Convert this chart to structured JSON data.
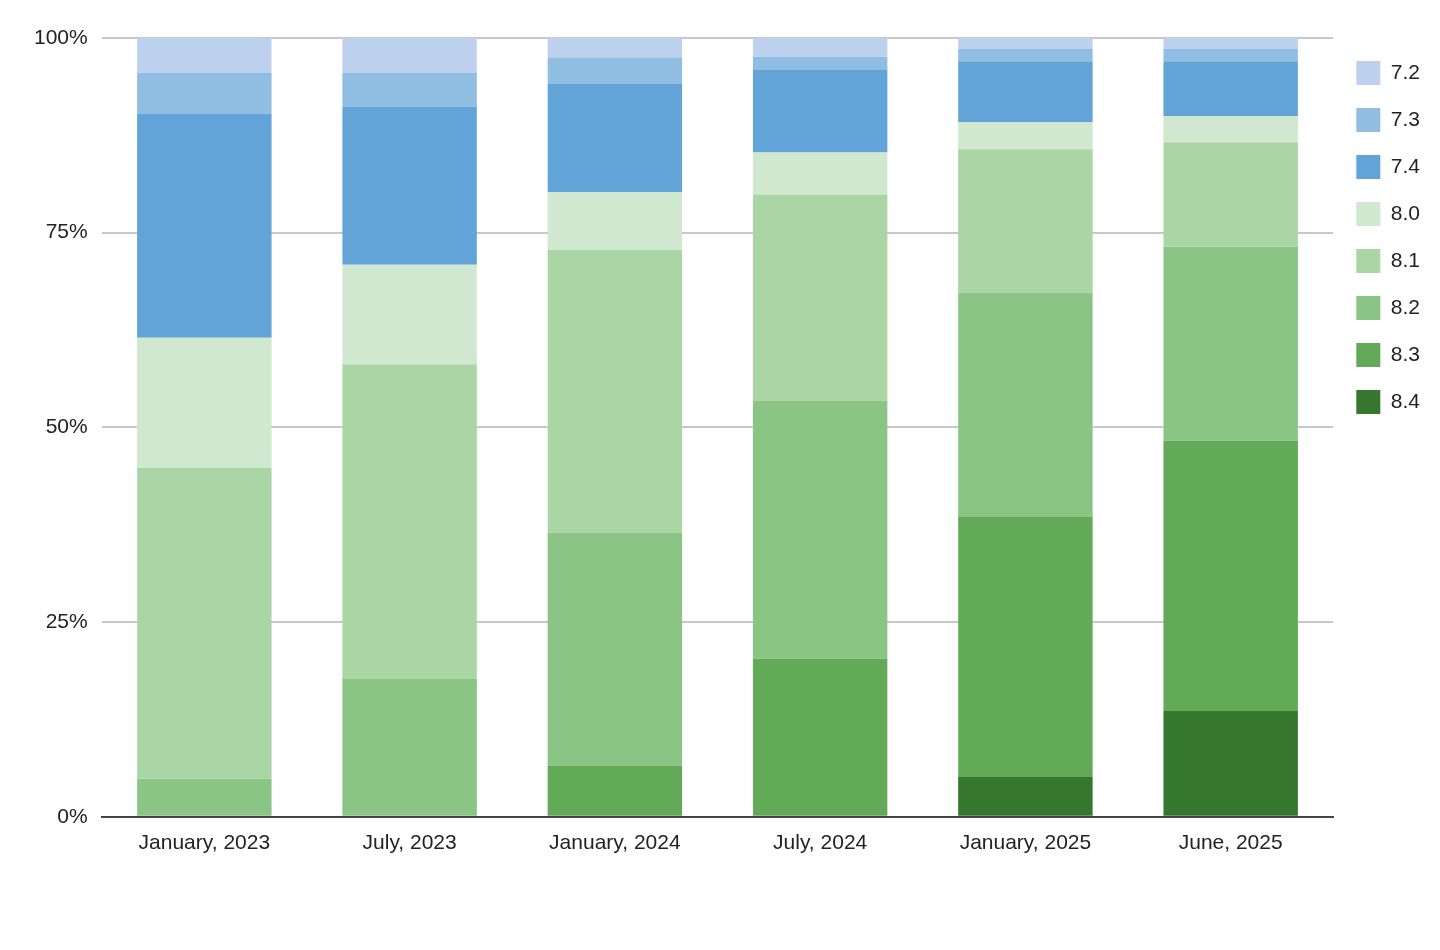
{
  "chart_data": {
    "type": "bar",
    "stacked": true,
    "categories": [
      "January, 2023",
      "July, 2023",
      "January, 2024",
      "July, 2024",
      "January, 2025",
      "June, 2025"
    ],
    "series": [
      {
        "name": "8.4",
        "color": "#34772d",
        "values": [
          0,
          0,
          0,
          0,
          5.1,
          13.6
        ]
      },
      {
        "name": "8.3",
        "color": "#63aa58",
        "values": [
          0,
          0,
          6.6,
          20.3,
          33.4,
          34.7
        ]
      },
      {
        "name": "8.2",
        "color": "#8ac585",
        "values": [
          4.9,
          17.7,
          29.9,
          33.1,
          28.8,
          24.9
        ]
      },
      {
        "name": "8.1",
        "color": "#aad6a5",
        "values": [
          39.9,
          40.4,
          36.3,
          26.5,
          18.4,
          13.4
        ]
      },
      {
        "name": "8.0",
        "color": "#d0e8d0",
        "values": [
          16.7,
          12.8,
          7.4,
          5.4,
          3.5,
          3.4
        ]
      },
      {
        "name": "7.4",
        "color": "#63a4d8",
        "values": [
          28.8,
          20.3,
          13.9,
          10.6,
          7.8,
          7.0
        ]
      },
      {
        "name": "7.3",
        "color": "#8fbee2",
        "values": [
          5.2,
          4.3,
          3.4,
          1.7,
          1.6,
          1.6
        ]
      },
      {
        "name": "7.2",
        "color": "#bdd1ee",
        "values": [
          4.5,
          4.5,
          2.5,
          2.4,
          1.4,
          1.4
        ]
      }
    ],
    "ylim": [
      0,
      100
    ],
    "yticks": [
      {
        "value": 0,
        "label": "0%"
      },
      {
        "value": 25,
        "label": "25%"
      },
      {
        "value": 50,
        "label": "50%"
      },
      {
        "value": 75,
        "label": "75%"
      },
      {
        "value": 100,
        "label": "100%"
      }
    ],
    "grid": "y",
    "legend": "top right"
  }
}
